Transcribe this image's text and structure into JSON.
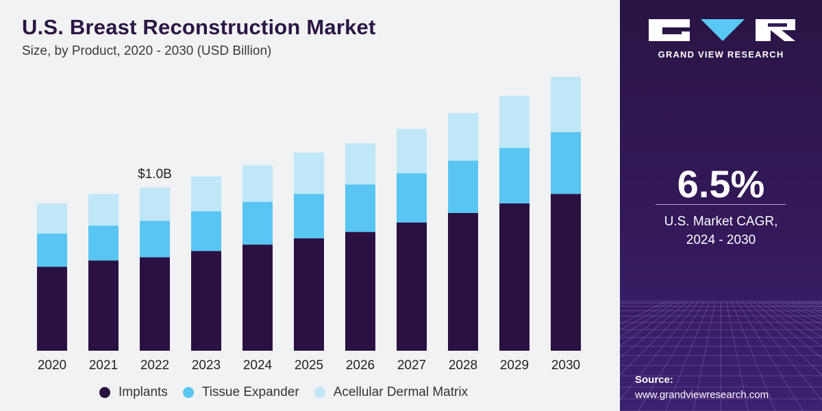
{
  "header": {
    "title": "U.S. Breast Reconstruction Market",
    "subtitle": "Size, by Product, 2020 - 2030 (USD Billion)"
  },
  "chart_data": {
    "type": "bar",
    "stacked": true,
    "categories": [
      "2020",
      "2021",
      "2022",
      "2023",
      "2024",
      "2025",
      "2026",
      "2027",
      "2028",
      "2029",
      "2030"
    ],
    "series": [
      {
        "name": "Implants",
        "color": "#2a1142",
        "values": [
          0.53,
          0.57,
          0.59,
          0.63,
          0.67,
          0.71,
          0.75,
          0.81,
          0.87,
          0.93,
          0.99
        ]
      },
      {
        "name": "Tissue Expander",
        "color": "#58c5f2",
        "values": [
          0.21,
          0.22,
          0.23,
          0.25,
          0.27,
          0.28,
          0.3,
          0.31,
          0.33,
          0.35,
          0.39
        ]
      },
      {
        "name": "Acellular Dermal Matrix",
        "color": "#bfe7f7",
        "values": [
          0.19,
          0.2,
          0.21,
          0.22,
          0.23,
          0.26,
          0.26,
          0.28,
          0.3,
          0.33,
          0.35
        ]
      }
    ],
    "annotations": [
      {
        "category": "2022",
        "text": "$1.0B"
      }
    ],
    "ylim": [
      0,
      1.73
    ],
    "grid": false,
    "legend_position": "bottom"
  },
  "sidebar": {
    "brand": "GRAND VIEW RESEARCH",
    "cagr_value": "6.5%",
    "cagr_label_line1": "U.S. Market CAGR,",
    "cagr_label_line2": "2024 - 2030",
    "source_label": "Source:",
    "source_url": "www.grandviewresearch.com"
  }
}
